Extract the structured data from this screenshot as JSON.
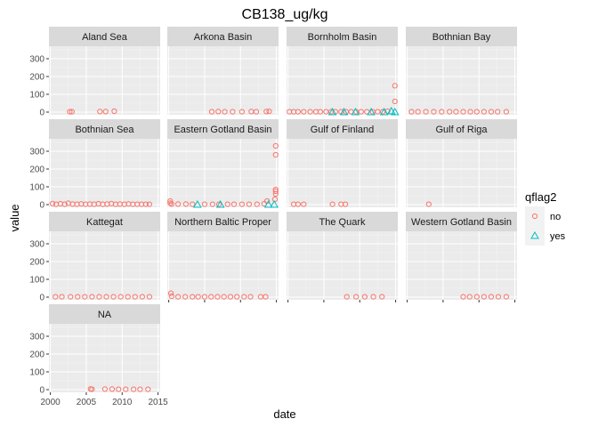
{
  "chart_data": {
    "type": "scatter",
    "title": "CB138_ug/kg",
    "xlabel": "date",
    "ylabel": "value",
    "xlim": [
      1999.8,
      2015.3
    ],
    "ylim": [
      -15,
      370
    ],
    "x_ticks": [
      2000,
      2005,
      2010,
      2015
    ],
    "y_ticks": [
      0,
      100,
      200,
      300
    ],
    "legend": {
      "title": "qflag2",
      "position": "right",
      "entries": [
        {
          "label": "no",
          "shape": "circle",
          "color": "#F8766D"
        },
        {
          "label": "yes",
          "shape": "triangle",
          "color": "#00BFC4"
        }
      ]
    },
    "colors": {
      "no": "#F8766D",
      "yes": "#00BFC4",
      "panel_bg": "#EBEBEB",
      "strip_bg": "#D9D9D9"
    },
    "facets": [
      {
        "name": "Aland Sea",
        "points": [
          {
            "x": 2002.7,
            "y": 2,
            "flag": "no"
          },
          {
            "x": 2003.0,
            "y": 2,
            "flag": "no"
          },
          {
            "x": 2006.9,
            "y": 3,
            "flag": "no"
          },
          {
            "x": 2007.7,
            "y": 3,
            "flag": "no"
          },
          {
            "x": 2008.9,
            "y": 5,
            "flag": "no"
          }
        ]
      },
      {
        "name": "Arkona Basin",
        "points": [
          {
            "x": 2006.0,
            "y": 2,
            "flag": "no"
          },
          {
            "x": 2006.9,
            "y": 3,
            "flag": "no"
          },
          {
            "x": 2007.8,
            "y": 2,
            "flag": "no"
          },
          {
            "x": 2008.9,
            "y": 2,
            "flag": "no"
          },
          {
            "x": 2010.2,
            "y": 2,
            "flag": "no"
          },
          {
            "x": 2011.5,
            "y": 3,
            "flag": "no"
          },
          {
            "x": 2012.2,
            "y": 2,
            "flag": "no"
          },
          {
            "x": 2013.6,
            "y": 3,
            "flag": "no"
          },
          {
            "x": 2014.0,
            "y": 4,
            "flag": "no"
          }
        ]
      },
      {
        "name": "Bornholm Basin",
        "points": [
          {
            "x": 2000.2,
            "y": 2,
            "flag": "no"
          },
          {
            "x": 2000.8,
            "y": 2,
            "flag": "no"
          },
          {
            "x": 2001.4,
            "y": 2,
            "flag": "no"
          },
          {
            "x": 2002.2,
            "y": 2,
            "flag": "no"
          },
          {
            "x": 2003.1,
            "y": 2,
            "flag": "no"
          },
          {
            "x": 2003.9,
            "y": 2,
            "flag": "no"
          },
          {
            "x": 2004.5,
            "y": 2,
            "flag": "no"
          },
          {
            "x": 2005.3,
            "y": 2,
            "flag": "no"
          },
          {
            "x": 2006.0,
            "y": 2,
            "flag": "no"
          },
          {
            "x": 2006.6,
            "y": 2,
            "flag": "no"
          },
          {
            "x": 2007.4,
            "y": 2,
            "flag": "no"
          },
          {
            "x": 2008.1,
            "y": 2,
            "flag": "no"
          },
          {
            "x": 2008.8,
            "y": 2,
            "flag": "no"
          },
          {
            "x": 2009.5,
            "y": 2,
            "flag": "no"
          },
          {
            "x": 2010.2,
            "y": 2,
            "flag": "no"
          },
          {
            "x": 2011.0,
            "y": 2,
            "flag": "no"
          },
          {
            "x": 2011.8,
            "y": 2,
            "flag": "no"
          },
          {
            "x": 2012.5,
            "y": 2,
            "flag": "no"
          },
          {
            "x": 2013.2,
            "y": 2,
            "flag": "no"
          },
          {
            "x": 2013.9,
            "y": 5,
            "flag": "no"
          },
          {
            "x": 2014.9,
            "y": 60,
            "flag": "no"
          },
          {
            "x": 2014.9,
            "y": 148,
            "flag": "no"
          },
          {
            "x": 2006.2,
            "y": 0,
            "flag": "yes"
          },
          {
            "x": 2007.8,
            "y": 0,
            "flag": "yes"
          },
          {
            "x": 2009.4,
            "y": 0,
            "flag": "yes"
          },
          {
            "x": 2011.6,
            "y": 0,
            "flag": "yes"
          },
          {
            "x": 2013.4,
            "y": 0,
            "flag": "yes"
          },
          {
            "x": 2014.4,
            "y": 5,
            "flag": "yes"
          },
          {
            "x": 2014.9,
            "y": 0,
            "flag": "yes"
          }
        ]
      },
      {
        "name": "Bothnian Bay",
        "points": [
          {
            "x": 2000.6,
            "y": 2,
            "flag": "no"
          },
          {
            "x": 2001.5,
            "y": 2,
            "flag": "no"
          },
          {
            "x": 2002.6,
            "y": 2,
            "flag": "no"
          },
          {
            "x": 2003.7,
            "y": 2,
            "flag": "no"
          },
          {
            "x": 2004.8,
            "y": 2,
            "flag": "no"
          },
          {
            "x": 2005.9,
            "y": 2,
            "flag": "no"
          },
          {
            "x": 2006.8,
            "y": 2,
            "flag": "no"
          },
          {
            "x": 2007.8,
            "y": 2,
            "flag": "no"
          },
          {
            "x": 2008.8,
            "y": 2,
            "flag": "no"
          },
          {
            "x": 2009.7,
            "y": 2,
            "flag": "no"
          },
          {
            "x": 2010.7,
            "y": 2,
            "flag": "no"
          },
          {
            "x": 2011.7,
            "y": 2,
            "flag": "no"
          },
          {
            "x": 2012.6,
            "y": 2,
            "flag": "no"
          },
          {
            "x": 2013.8,
            "y": 2,
            "flag": "no"
          }
        ]
      },
      {
        "name": "Bothnian Sea",
        "points": [
          {
            "x": 2000.3,
            "y": 6,
            "flag": "no"
          },
          {
            "x": 2000.8,
            "y": 2,
            "flag": "no"
          },
          {
            "x": 2001.4,
            "y": 5,
            "flag": "no"
          },
          {
            "x": 2002.0,
            "y": 2,
            "flag": "no"
          },
          {
            "x": 2002.5,
            "y": 8,
            "flag": "no"
          },
          {
            "x": 2003.1,
            "y": 3,
            "flag": "no"
          },
          {
            "x": 2003.7,
            "y": 2,
            "flag": "no"
          },
          {
            "x": 2004.3,
            "y": 4,
            "flag": "no"
          },
          {
            "x": 2004.9,
            "y": 2,
            "flag": "no"
          },
          {
            "x": 2005.5,
            "y": 3,
            "flag": "no"
          },
          {
            "x": 2006.1,
            "y": 2,
            "flag": "no"
          },
          {
            "x": 2006.7,
            "y": 5,
            "flag": "no"
          },
          {
            "x": 2007.3,
            "y": 2,
            "flag": "no"
          },
          {
            "x": 2007.9,
            "y": 3,
            "flag": "no"
          },
          {
            "x": 2008.5,
            "y": 6,
            "flag": "no"
          },
          {
            "x": 2009.1,
            "y": 2,
            "flag": "no"
          },
          {
            "x": 2009.7,
            "y": 3,
            "flag": "no"
          },
          {
            "x": 2010.3,
            "y": 2,
            "flag": "no"
          },
          {
            "x": 2010.9,
            "y": 4,
            "flag": "no"
          },
          {
            "x": 2011.5,
            "y": 2,
            "flag": "no"
          },
          {
            "x": 2012.1,
            "y": 2,
            "flag": "no"
          },
          {
            "x": 2012.7,
            "y": 2,
            "flag": "no"
          },
          {
            "x": 2013.3,
            "y": 2,
            "flag": "no"
          },
          {
            "x": 2013.8,
            "y": 2,
            "flag": "no"
          }
        ]
      },
      {
        "name": "Eastern Gotland Basin",
        "points": [
          {
            "x": 2000.2,
            "y": 8,
            "flag": "no"
          },
          {
            "x": 2000.2,
            "y": 20,
            "flag": "no"
          },
          {
            "x": 2000.4,
            "y": 3,
            "flag": "no"
          },
          {
            "x": 2001.3,
            "y": 3,
            "flag": "no"
          },
          {
            "x": 2002.4,
            "y": 3,
            "flag": "no"
          },
          {
            "x": 2003.3,
            "y": 2,
            "flag": "no"
          },
          {
            "x": 2005.0,
            "y": 2,
            "flag": "no"
          },
          {
            "x": 2006.1,
            "y": 2,
            "flag": "no"
          },
          {
            "x": 2007.0,
            "y": 2,
            "flag": "no"
          },
          {
            "x": 2008.2,
            "y": 2,
            "flag": "no"
          },
          {
            "x": 2009.1,
            "y": 2,
            "flag": "no"
          },
          {
            "x": 2010.2,
            "y": 2,
            "flag": "no"
          },
          {
            "x": 2011.2,
            "y": 2,
            "flag": "no"
          },
          {
            "x": 2012.3,
            "y": 2,
            "flag": "no"
          },
          {
            "x": 2013.3,
            "y": 5,
            "flag": "no"
          },
          {
            "x": 2013.7,
            "y": 20,
            "flag": "no"
          },
          {
            "x": 2014.8,
            "y": 30,
            "flag": "no"
          },
          {
            "x": 2014.9,
            "y": 60,
            "flag": "no"
          },
          {
            "x": 2014.9,
            "y": 75,
            "flag": "no"
          },
          {
            "x": 2014.9,
            "y": 85,
            "flag": "no"
          },
          {
            "x": 2014.9,
            "y": 280,
            "flag": "no"
          },
          {
            "x": 2014.9,
            "y": 330,
            "flag": "no"
          },
          {
            "x": 2004.0,
            "y": 0,
            "flag": "yes"
          },
          {
            "x": 2007.2,
            "y": 0,
            "flag": "yes"
          },
          {
            "x": 2013.9,
            "y": 0,
            "flag": "yes"
          },
          {
            "x": 2014.7,
            "y": 0,
            "flag": "yes"
          }
        ]
      },
      {
        "name": "Gulf of Finland",
        "points": [
          {
            "x": 2000.8,
            "y": 2,
            "flag": "no"
          },
          {
            "x": 2001.4,
            "y": 2,
            "flag": "no"
          },
          {
            "x": 2002.2,
            "y": 2,
            "flag": "no"
          },
          {
            "x": 2006.2,
            "y": 2,
            "flag": "no"
          },
          {
            "x": 2007.4,
            "y": 2,
            "flag": "no"
          },
          {
            "x": 2008.0,
            "y": 2,
            "flag": "no"
          }
        ]
      },
      {
        "name": "Gulf of Riga",
        "points": [
          {
            "x": 2003.0,
            "y": 2,
            "flag": "no"
          }
        ]
      },
      {
        "name": "Kattegat",
        "points": [
          {
            "x": 2000.7,
            "y": 2,
            "flag": "no"
          },
          {
            "x": 2001.6,
            "y": 2,
            "flag": "no"
          },
          {
            "x": 2002.8,
            "y": 2,
            "flag": "no"
          },
          {
            "x": 2003.8,
            "y": 2,
            "flag": "no"
          },
          {
            "x": 2004.8,
            "y": 2,
            "flag": "no"
          },
          {
            "x": 2005.8,
            "y": 2,
            "flag": "no"
          },
          {
            "x": 2006.8,
            "y": 2,
            "flag": "no"
          },
          {
            "x": 2007.8,
            "y": 2,
            "flag": "no"
          },
          {
            "x": 2008.8,
            "y": 2,
            "flag": "no"
          },
          {
            "x": 2009.8,
            "y": 2,
            "flag": "no"
          },
          {
            "x": 2010.8,
            "y": 2,
            "flag": "no"
          },
          {
            "x": 2011.8,
            "y": 2,
            "flag": "no"
          },
          {
            "x": 2012.8,
            "y": 2,
            "flag": "no"
          },
          {
            "x": 2013.8,
            "y": 2,
            "flag": "no"
          }
        ]
      },
      {
        "name": "Northern Baltic Proper",
        "points": [
          {
            "x": 2000.3,
            "y": 22,
            "flag": "no"
          },
          {
            "x": 2000.4,
            "y": 5,
            "flag": "no"
          },
          {
            "x": 2001.3,
            "y": 2,
            "flag": "no"
          },
          {
            "x": 2002.3,
            "y": 2,
            "flag": "no"
          },
          {
            "x": 2003.3,
            "y": 2,
            "flag": "no"
          },
          {
            "x": 2004.1,
            "y": 2,
            "flag": "no"
          },
          {
            "x": 2005.0,
            "y": 2,
            "flag": "no"
          },
          {
            "x": 2005.9,
            "y": 2,
            "flag": "no"
          },
          {
            "x": 2006.8,
            "y": 2,
            "flag": "no"
          },
          {
            "x": 2007.7,
            "y": 2,
            "flag": "no"
          },
          {
            "x": 2008.6,
            "y": 2,
            "flag": "no"
          },
          {
            "x": 2009.5,
            "y": 2,
            "flag": "no"
          },
          {
            "x": 2010.5,
            "y": 2,
            "flag": "no"
          },
          {
            "x": 2011.4,
            "y": 2,
            "flag": "no"
          },
          {
            "x": 2012.8,
            "y": 2,
            "flag": "no"
          },
          {
            "x": 2013.5,
            "y": 2,
            "flag": "no"
          }
        ]
      },
      {
        "name": "The Quark",
        "points": [
          {
            "x": 2008.2,
            "y": 2,
            "flag": "no"
          },
          {
            "x": 2009.5,
            "y": 2,
            "flag": "no"
          },
          {
            "x": 2010.7,
            "y": 2,
            "flag": "no"
          },
          {
            "x": 2011.9,
            "y": 2,
            "flag": "no"
          },
          {
            "x": 2013.1,
            "y": 2,
            "flag": "no"
          }
        ]
      },
      {
        "name": "Western Gotland Basin",
        "points": [
          {
            "x": 2007.8,
            "y": 2,
            "flag": "no"
          },
          {
            "x": 2008.7,
            "y": 2,
            "flag": "no"
          },
          {
            "x": 2009.7,
            "y": 2,
            "flag": "no"
          },
          {
            "x": 2010.7,
            "y": 2,
            "flag": "no"
          },
          {
            "x": 2011.7,
            "y": 2,
            "flag": "no"
          },
          {
            "x": 2012.7,
            "y": 2,
            "flag": "no"
          },
          {
            "x": 2013.8,
            "y": 2,
            "flag": "no"
          }
        ]
      },
      {
        "name": "NA",
        "points": [
          {
            "x": 2005.6,
            "y": 4,
            "flag": "no"
          },
          {
            "x": 2005.8,
            "y": 2,
            "flag": "no"
          },
          {
            "x": 2007.6,
            "y": 3,
            "flag": "no"
          },
          {
            "x": 2008.6,
            "y": 3,
            "flag": "no"
          },
          {
            "x": 2009.5,
            "y": 2,
            "flag": "no"
          },
          {
            "x": 2010.5,
            "y": 2,
            "flag": "no"
          },
          {
            "x": 2011.6,
            "y": 2,
            "flag": "no"
          },
          {
            "x": 2012.5,
            "y": 2,
            "flag": "no"
          },
          {
            "x": 2013.6,
            "y": 2,
            "flag": "no"
          }
        ]
      }
    ]
  }
}
